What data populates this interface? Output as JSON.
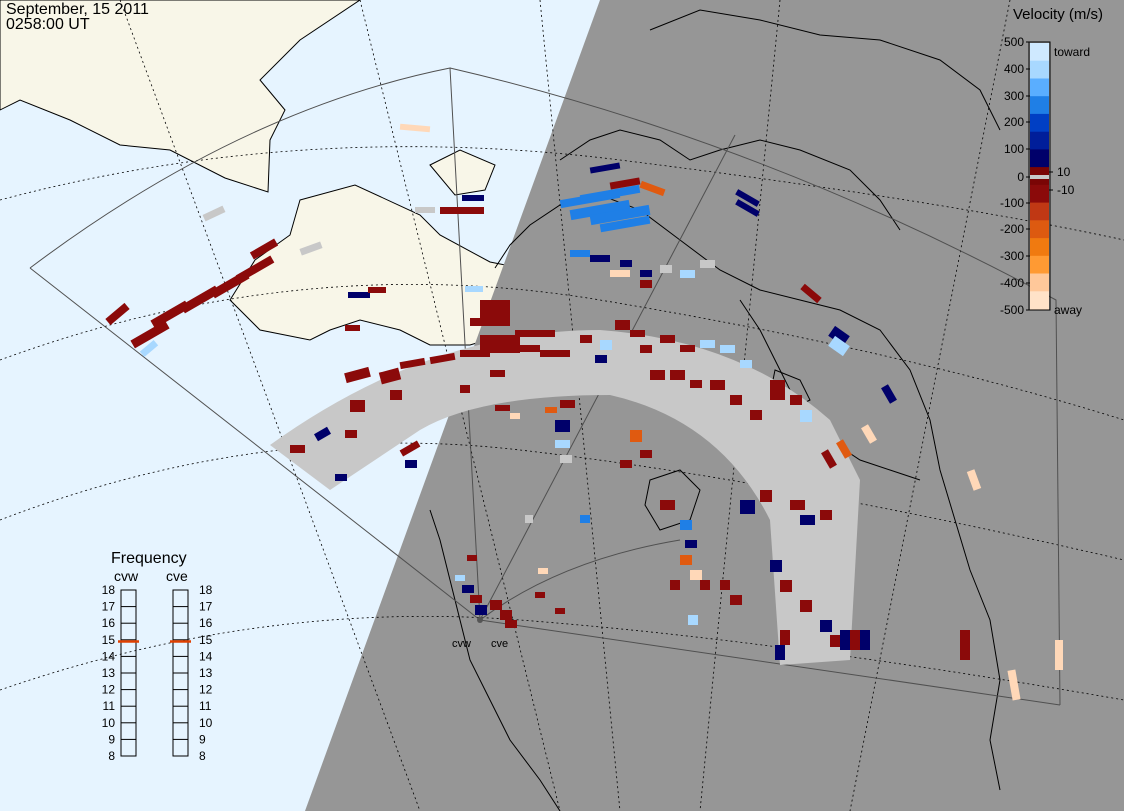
{
  "header": {
    "date": "September, 15 2011",
    "time": "0258:00 UT"
  },
  "colorbar": {
    "title": "Velocity (m/s)",
    "ticks": [
      "500",
      "400",
      "300",
      "200",
      "100",
      "10",
      "0",
      "-10",
      "-100",
      "-200",
      "-300",
      "-400",
      "-500"
    ],
    "toward_label": "toward",
    "away_label": "away",
    "colors": [
      "#ffe2c8",
      "#ffc89a",
      "#ff9a33",
      "#f07a10",
      "#dd5a10",
      "#c03814",
      "#8b0a0a",
      "#7a0505",
      "#00006a",
      "#001e9a",
      "#003fc4",
      "#1f7fe6",
      "#5aaeff",
      "#a8d8ff",
      "#cfe9ff"
    ]
  },
  "frequency": {
    "title": "Frequency",
    "radars": [
      {
        "label": "cvw",
        "value_mhz": 14.9
      },
      {
        "label": "cve",
        "value_mhz": 14.9
      }
    ],
    "ticks": [
      "18",
      "17",
      "16",
      "15",
      "14",
      "13",
      "12",
      "11",
      "10",
      "9",
      "8"
    ]
  },
  "map": {
    "ocean_color": "#e6f4ff",
    "night_color": "#969696",
    "land_color": "#f8f6e8",
    "ground_scatter_color": "#c8c8c8",
    "radar_sites": [
      {
        "label": "cvw"
      },
      {
        "label": "cve"
      }
    ]
  }
}
